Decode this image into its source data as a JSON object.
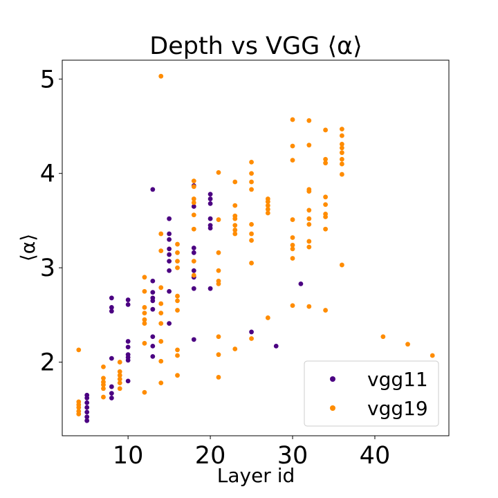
{
  "chart_data": {
    "type": "scatter",
    "title": "Depth vs VGG ⟨α⟩",
    "xlabel": "Layer id",
    "ylabel": "⟨α⟩",
    "xlim": [
      2,
      49
    ],
    "ylim": [
      1.22,
      5.2
    ],
    "xticks": [
      10,
      20,
      30,
      40
    ],
    "yticks": [
      2,
      3,
      4,
      5
    ],
    "grid": false,
    "legend_position": "lower-right",
    "series": [
      {
        "name": "vgg11",
        "color": "#4b0082",
        "points": [
          [
            5,
            1.38
          ],
          [
            5,
            1.42
          ],
          [
            5,
            1.47
          ],
          [
            5,
            1.52
          ],
          [
            5,
            1.57
          ],
          [
            5,
            1.62
          ],
          [
            5,
            1.65
          ],
          [
            8,
            1.62
          ],
          [
            8,
            1.67
          ],
          [
            8,
            1.74
          ],
          [
            8,
            2.04
          ],
          [
            8,
            2.54
          ],
          [
            8,
            2.58
          ],
          [
            8,
            2.68
          ],
          [
            10,
            1.8
          ],
          [
            10,
            2.02
          ],
          [
            10,
            2.05
          ],
          [
            10,
            2.08
          ],
          [
            10,
            2.16
          ],
          [
            10,
            2.22
          ],
          [
            10,
            2.61
          ],
          [
            10,
            2.66
          ],
          [
            13,
            2.06
          ],
          [
            13,
            2.17
          ],
          [
            13,
            2.27
          ],
          [
            13,
            2.56
          ],
          [
            13,
            2.65
          ],
          [
            13,
            2.68
          ],
          [
            13,
            2.74
          ],
          [
            13,
            2.86
          ],
          [
            13,
            3.83
          ],
          [
            15,
            2.41
          ],
          [
            15,
            2.75
          ],
          [
            15,
            2.97
          ],
          [
            15,
            3.07
          ],
          [
            15,
            3.14
          ],
          [
            15,
            3.2
          ],
          [
            15,
            3.3
          ],
          [
            15,
            3.36
          ],
          [
            15,
            3.52
          ],
          [
            18,
            2.24
          ],
          [
            18,
            2.78
          ],
          [
            18,
            2.9
          ],
          [
            18,
            2.97
          ],
          [
            18,
            3.16
          ],
          [
            18,
            3.21
          ],
          [
            18,
            3.65
          ],
          [
            18,
            3.87
          ],
          [
            20,
            2.78
          ],
          [
            20,
            3.42
          ],
          [
            20,
            3.45
          ],
          [
            20,
            3.52
          ],
          [
            20,
            3.68
          ],
          [
            20,
            3.73
          ],
          [
            20,
            3.78
          ],
          [
            25,
            2.32
          ],
          [
            28,
            2.17
          ],
          [
            31,
            2.83
          ]
        ]
      },
      {
        "name": "vgg19",
        "color": "#ff8c00",
        "points": [
          [
            4,
            1.45
          ],
          [
            4,
            1.48
          ],
          [
            4,
            1.52
          ],
          [
            4,
            1.55
          ],
          [
            4,
            1.58
          ],
          [
            4,
            2.13
          ],
          [
            7,
            1.63
          ],
          [
            7,
            1.72
          ],
          [
            7,
            1.76
          ],
          [
            7,
            1.79
          ],
          [
            7,
            1.83
          ],
          [
            7,
            1.95
          ],
          [
            9,
            1.72
          ],
          [
            9,
            1.78
          ],
          [
            9,
            1.82
          ],
          [
            9,
            1.86
          ],
          [
            9,
            1.9
          ],
          [
            9,
            2.0
          ],
          [
            12,
            1.68
          ],
          [
            12,
            2.2
          ],
          [
            12,
            2.41
          ],
          [
            12,
            2.45
          ],
          [
            12,
            2.52
          ],
          [
            12,
            2.58
          ],
          [
            12,
            2.75
          ],
          [
            12,
            2.9
          ],
          [
            14,
            1.78
          ],
          [
            14,
            2.01
          ],
          [
            14,
            2.22
          ],
          [
            14,
            2.41
          ],
          [
            14,
            2.52
          ],
          [
            14,
            2.62
          ],
          [
            14,
            2.79
          ],
          [
            14,
            3.18
          ],
          [
            14,
            3.36
          ],
          [
            14,
            5.03
          ],
          [
            16,
            1.86
          ],
          [
            16,
            2.07
          ],
          [
            16,
            2.13
          ],
          [
            16,
            2.55
          ],
          [
            16,
            2.65
          ],
          [
            16,
            2.7
          ],
          [
            16,
            3.0
          ],
          [
            16,
            3.07
          ],
          [
            16,
            3.16
          ],
          [
            16,
            3.25
          ],
          [
            18,
            2.92
          ],
          [
            18,
            3.07
          ],
          [
            18,
            3.41
          ],
          [
            18,
            3.56
          ],
          [
            18,
            3.69
          ],
          [
            18,
            3.73
          ],
          [
            18,
            3.86
          ],
          [
            18,
            3.92
          ],
          [
            21,
            1.84
          ],
          [
            21,
            2.08
          ],
          [
            21,
            2.27
          ],
          [
            21,
            2.83
          ],
          [
            21,
            2.86
          ],
          [
            21,
            2.97
          ],
          [
            21,
            3.16
          ],
          [
            21,
            3.51
          ],
          [
            21,
            4.01
          ],
          [
            23,
            2.14
          ],
          [
            23,
            3.36
          ],
          [
            23,
            3.4
          ],
          [
            23,
            3.45
          ],
          [
            23,
            3.52
          ],
          [
            23,
            3.55
          ],
          [
            23,
            3.66
          ],
          [
            23,
            3.91
          ],
          [
            25,
            2.25
          ],
          [
            25,
            3.05
          ],
          [
            25,
            3.29
          ],
          [
            25,
            3.36
          ],
          [
            25,
            3.46
          ],
          [
            25,
            3.83
          ],
          [
            25,
            3.91
          ],
          [
            25,
            4.0
          ],
          [
            25,
            4.12
          ],
          [
            27,
            2.47
          ],
          [
            27,
            3.58
          ],
          [
            27,
            3.62
          ],
          [
            27,
            3.66
          ],
          [
            27,
            3.7
          ],
          [
            27,
            3.73
          ],
          [
            30,
            2.6
          ],
          [
            30,
            3.1
          ],
          [
            30,
            3.2
          ],
          [
            30,
            3.24
          ],
          [
            30,
            3.32
          ],
          [
            30,
            3.51
          ],
          [
            30,
            4.14
          ],
          [
            30,
            4.29
          ],
          [
            30,
            4.57
          ],
          [
            32,
            2.59
          ],
          [
            32,
            3.22
          ],
          [
            32,
            3.28
          ],
          [
            32,
            3.46
          ],
          [
            32,
            3.52
          ],
          [
            32,
            3.61
          ],
          [
            32,
            3.81
          ],
          [
            32,
            3.83
          ],
          [
            32,
            4.3
          ],
          [
            32,
            4.56
          ],
          [
            34,
            2.55
          ],
          [
            34,
            3.41
          ],
          [
            34,
            3.54
          ],
          [
            34,
            3.57
          ],
          [
            34,
            3.67
          ],
          [
            34,
            3.75
          ],
          [
            34,
            4.11
          ],
          [
            34,
            4.15
          ],
          [
            34,
            4.46
          ],
          [
            36,
            3.03
          ],
          [
            36,
            3.99
          ],
          [
            36,
            4.1
          ],
          [
            36,
            4.15
          ],
          [
            36,
            4.22
          ],
          [
            36,
            4.27
          ],
          [
            36,
            4.31
          ],
          [
            36,
            4.4
          ],
          [
            36,
            4.47
          ],
          [
            41,
            2.27
          ],
          [
            44,
            2.19
          ],
          [
            47,
            2.07
          ]
        ]
      }
    ]
  }
}
